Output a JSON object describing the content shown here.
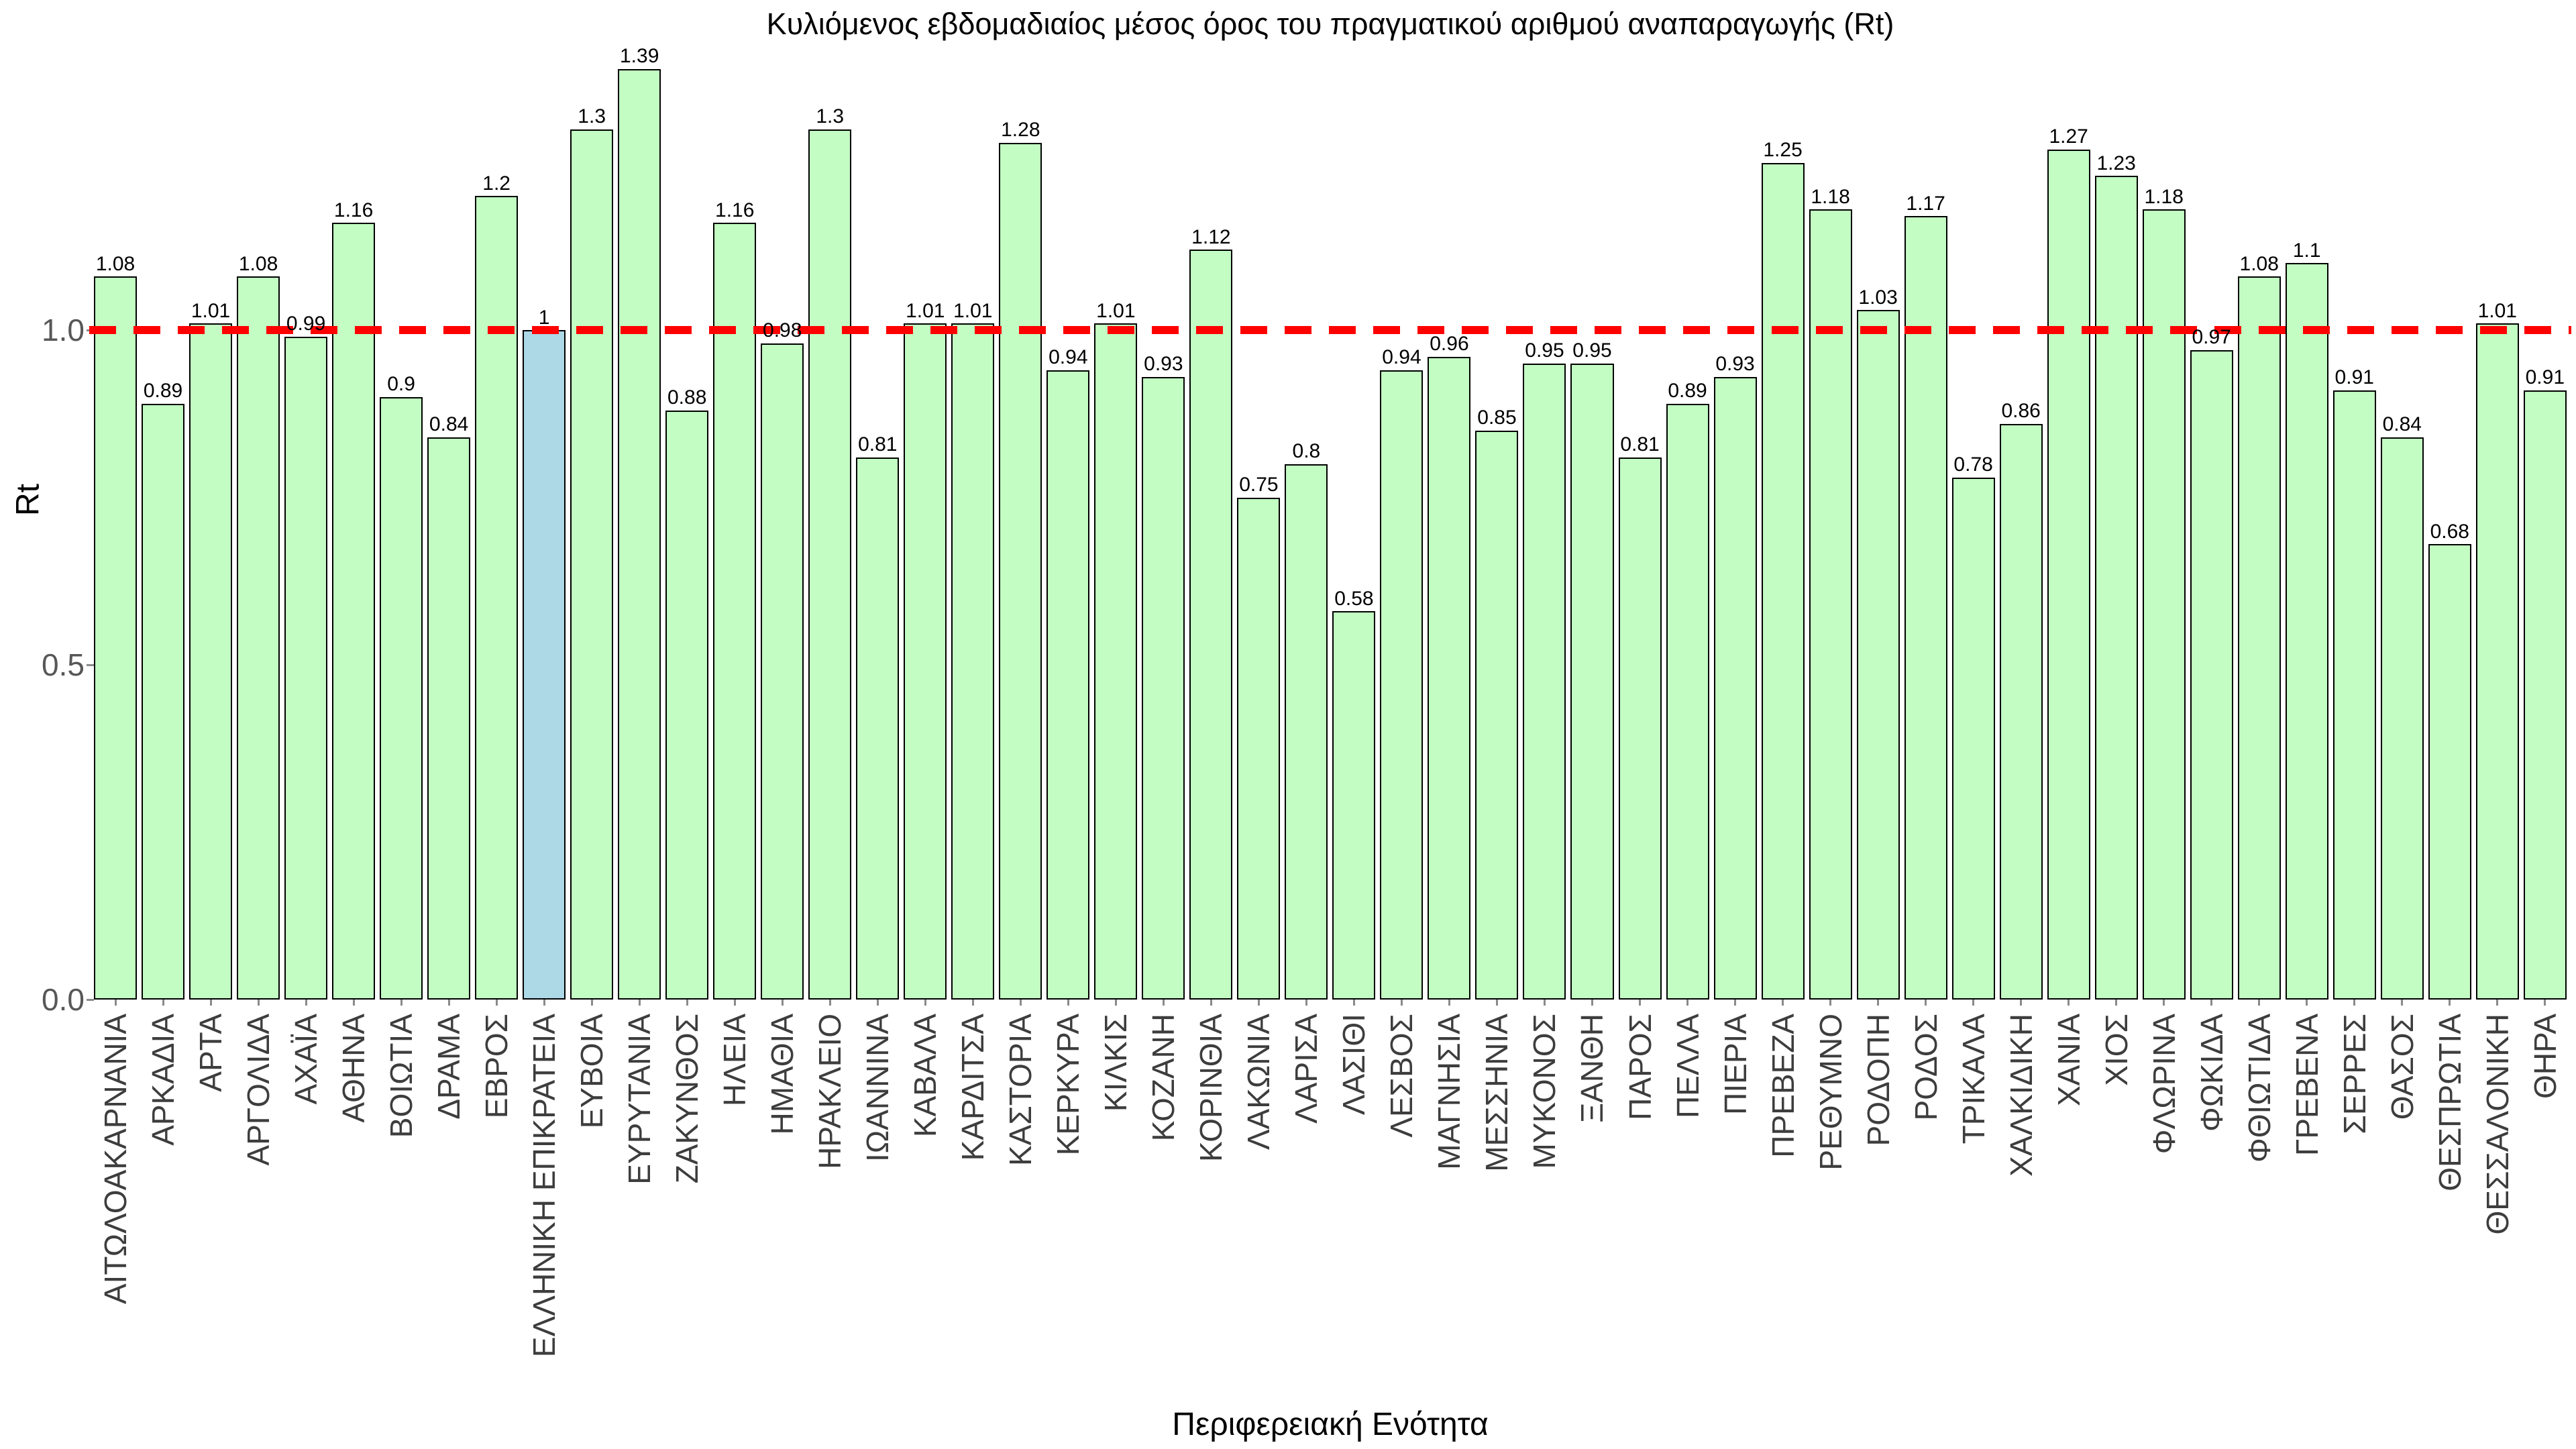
{
  "title": "Κυλιόμενος εβδομαδιαίος μέσος όρος του πραγματικού αριθμού αναπαραγωγής (Rt)",
  "axes": {
    "y_label": "Rt",
    "x_label": "Περιφερειακή Ενότητα",
    "y_ticks": [
      "0.0",
      "0.5",
      "1.0"
    ]
  },
  "colors": {
    "bar_fill": "#c3fdc3",
    "bar_highlight_fill": "#add8e6",
    "bar_border": "#000000",
    "reference_line": "#ff0000",
    "tick_label": "#575757",
    "region_label": "#3d3d3d"
  },
  "chart_data": {
    "type": "bar",
    "title": "Κυλιόμενος εβδομαδιαίος μέσος όρος του πραγματικού αριθμού αναπαραγωγής (Rt)",
    "xlabel": "Περιφερειακή Ενότητα",
    "ylabel": "Rt",
    "ylim": [
      0,
      1.49
    ],
    "yticks": [
      "0.0",
      "0.5",
      "1.0"
    ],
    "grid": false,
    "legend": false,
    "reference_line": 1.0,
    "highlight_category": "ΕΛΛΗΝΙΚΗ ΕΠΙΚΡΑΤΕΙΑ",
    "categories": [
      "ΑΙΤΩΛΟΑΚΑΡΝΑΝΙΑ",
      "ΑΡΚΑΔΙΑ",
      "ΑΡΤΑ",
      "ΑΡΓΟΛΙΔΑ",
      "ΑΧΑΪΑ",
      "ΑΘΗΝΑ",
      "ΒΟΙΩΤΙΑ",
      "ΔΡΑΜΑ",
      "ΕΒΡΟΣ",
      "ΕΛΛΗΝΙΚΗ ΕΠΙΚΡΑΤΕΙΑ",
      "ΕΥΒΟΙΑ",
      "ΕΥΡΥΤΑΝΙΑ",
      "ΖΑΚΥΝΘΟΣ",
      "ΗΛΕΙΑ",
      "ΗΜΑΘΙΑ",
      "ΗΡΑΚΛΕΙΟ",
      "ΙΩΑΝΝΙΝΑ",
      "ΚΑΒΑΛΑ",
      "ΚΑΡΔΙΤΣΑ",
      "ΚΑΣΤΟΡΙΑ",
      "ΚΕΡΚΥΡΑ",
      "ΚΙΛΚΙΣ",
      "ΚΟΖΑΝΗ",
      "ΚΟΡΙΝΘΙΑ",
      "ΛΑΚΩΝΙΑ",
      "ΛΑΡΙΣΑ",
      "ΛΑΣΙΘΙ",
      "ΛΕΣΒΟΣ",
      "ΜΑΓΝΗΣΙΑ",
      "ΜΕΣΣΗΝΙΑ",
      "ΜΥΚΟΝΟΣ",
      "ΞΑΝΘΗ",
      "ΠΑΡΟΣ",
      "ΠΕΛΛΑ",
      "ΠΙΕΡΙΑ",
      "ΠΡΕΒΕΖΑ",
      "ΡΕΘΥΜΝΟ",
      "ΡΟΔΟΠΗ",
      "ΡΟΔΟΣ",
      "ΤΡΙΚΑΛΑ",
      "ΧΑΛΚΙΔΙΚΗ",
      "ΧΑΝΙΑ",
      "ΧΙΟΣ",
      "ΦΛΩΡΙΝΑ",
      "ΦΩΚΙΔΑ",
      "ΦΘΙΩΤΙΔΑ",
      "ΓΡΕΒΕΝΑ",
      "ΣΕΡΡΕΣ",
      "ΘΑΣΟΣ",
      "ΘΕΣΠΡΩΤΙΑ",
      "ΘΕΣΣΑΛΟΝΙΚΗ",
      "ΘΗΡΑ"
    ],
    "values": [
      1.08,
      0.89,
      1.01,
      1.08,
      0.99,
      1.16,
      0.9,
      0.84,
      1.2,
      1,
      1.3,
      1.39,
      0.88,
      1.16,
      0.98,
      1.3,
      0.81,
      1.01,
      1.01,
      1.28,
      0.94,
      1.01,
      0.93,
      1.12,
      0.75,
      0.8,
      0.58,
      0.94,
      0.96,
      0.85,
      0.95,
      0.95,
      0.81,
      0.89,
      0.93,
      1.25,
      1.18,
      1.03,
      1.17,
      0.78,
      0.86,
      1.27,
      1.23,
      1.18,
      0.97,
      1.08,
      1.1,
      0.91,
      0.84,
      0.68,
      1.01,
      0.91
    ],
    "value_labels": [
      "1.08",
      "0.89",
      "1.01",
      "1.08",
      "0.99",
      "1.16",
      "0.9",
      "0.84",
      "1.2",
      "1",
      "1.3",
      "1.39",
      "0.88",
      "1.16",
      "0.98",
      "1.3",
      "0.81",
      "1.01",
      "1.01",
      "1.28",
      "0.94",
      "1.01",
      "0.93",
      "1.12",
      "0.75",
      "0.8",
      "0.58",
      "0.94",
      "0.96",
      "0.85",
      "0.95",
      "0.95",
      "0.81",
      "0.89",
      "0.93",
      "1.25",
      "1.18",
      "1.03",
      "1.17",
      "0.78",
      "0.86",
      "1.27",
      "1.23",
      "1.18",
      "0.97",
      "1.08",
      "1.1",
      "0.91",
      "0.84",
      "0.68",
      "1.01",
      "0.91"
    ]
  }
}
